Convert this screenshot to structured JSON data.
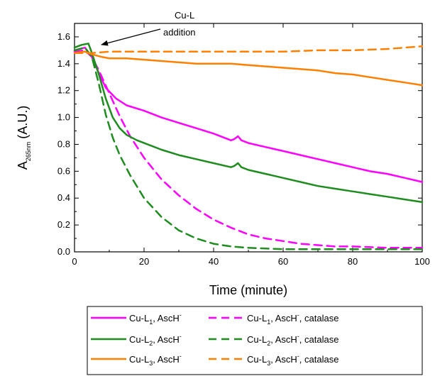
{
  "chart_data": {
    "type": "line",
    "xlabel": "Time (minute)",
    "ylabel": "A",
    "ylabel_subscript": "265nm",
    "ylabel_unit": "(A.U.)",
    "xlim": [
      0,
      100
    ],
    "ylim": [
      0,
      1.7
    ],
    "xticks": [
      "0",
      "20",
      "40",
      "60",
      "80",
      "100"
    ],
    "xtick_values": [
      0,
      20,
      40,
      60,
      80,
      100
    ],
    "yticks": [
      "0.0",
      "0.2",
      "0.4",
      "0.6",
      "0.8",
      "1.0",
      "1.2",
      "1.4",
      "1.6"
    ],
    "ytick_values": [
      0,
      0.2,
      0.4,
      0.6,
      0.8,
      1.0,
      1.2,
      1.4,
      1.6
    ],
    "grid": false,
    "legend_placement": "bottom",
    "annotation": {
      "line1": "Cu-L",
      "line2": "addition",
      "points_to_x": 4
    },
    "series": [
      {
        "name": "Cu-L1, AscH-",
        "legend": {
          "a": "Cu-L",
          "sub": "1",
          "b": ", AscH",
          "sup": "-",
          "c": ""
        },
        "color": "#ff00ff",
        "dash": "solid",
        "x": [
          0,
          3,
          5,
          7,
          9,
          12,
          15,
          20,
          25,
          30,
          35,
          40,
          45,
          46,
          47,
          48,
          50,
          55,
          60,
          65,
          70,
          75,
          80,
          85,
          90,
          95,
          100
        ],
        "y": [
          1.5,
          1.52,
          1.45,
          1.33,
          1.22,
          1.14,
          1.09,
          1.05,
          1.0,
          0.96,
          0.92,
          0.88,
          0.83,
          0.84,
          0.86,
          0.83,
          0.81,
          0.78,
          0.75,
          0.72,
          0.69,
          0.66,
          0.63,
          0.6,
          0.58,
          0.55,
          0.52
        ]
      },
      {
        "name": "Cu-L1, AscH-, catalase",
        "legend": {
          "a": "Cu-L",
          "sub": "1",
          "b": ", AscH",
          "sup": "-",
          "c": ", catalase"
        },
        "color": "#ff00ff",
        "dash": "dashed",
        "x": [
          0,
          3,
          5,
          7,
          10,
          13,
          16,
          20,
          25,
          30,
          35,
          40,
          45,
          50,
          55,
          60,
          65,
          70,
          75,
          80,
          85,
          90,
          95,
          100
        ],
        "y": [
          1.49,
          1.5,
          1.45,
          1.35,
          1.18,
          1.01,
          0.86,
          0.7,
          0.54,
          0.42,
          0.32,
          0.24,
          0.18,
          0.13,
          0.1,
          0.08,
          0.06,
          0.05,
          0.04,
          0.04,
          0.035,
          0.03,
          0.03,
          0.03
        ]
      },
      {
        "name": "Cu-L2, AscH-",
        "legend": {
          "a": "Cu-L",
          "sub": "2",
          "b": ", AscH",
          "sup": "-",
          "c": ""
        },
        "color": "#1e8c1e",
        "dash": "solid",
        "x": [
          0,
          2,
          4,
          5,
          7,
          9,
          11,
          13,
          15,
          18,
          20,
          25,
          30,
          35,
          40,
          45,
          46,
          47,
          48,
          50,
          55,
          60,
          65,
          70,
          75,
          80,
          85,
          90,
          95,
          100
        ],
        "y": [
          1.52,
          1.54,
          1.55,
          1.48,
          1.32,
          1.14,
          1.0,
          0.92,
          0.87,
          0.83,
          0.81,
          0.76,
          0.72,
          0.69,
          0.66,
          0.63,
          0.64,
          0.66,
          0.63,
          0.61,
          0.58,
          0.55,
          0.52,
          0.49,
          0.47,
          0.45,
          0.43,
          0.41,
          0.39,
          0.37
        ]
      },
      {
        "name": "Cu-L2, AscH-, catalase",
        "legend": {
          "a": "Cu-L",
          "sub": "2",
          "b": ", AscH",
          "sup": "-",
          "c": ", catalase"
        },
        "color": "#1e8c1e",
        "dash": "dashed",
        "x": [
          0,
          3,
          5,
          7,
          9,
          11,
          13,
          16,
          20,
          25,
          30,
          35,
          40,
          45,
          50,
          55,
          60,
          65,
          70,
          75,
          80,
          85,
          90,
          95,
          100
        ],
        "y": [
          1.5,
          1.52,
          1.45,
          1.25,
          1.02,
          0.85,
          0.72,
          0.57,
          0.4,
          0.26,
          0.16,
          0.1,
          0.06,
          0.04,
          0.03,
          0.025,
          0.02,
          0.02,
          0.02,
          0.02,
          0.02,
          0.02,
          0.02,
          0.02,
          0.02
        ]
      },
      {
        "name": "Cu-L3, AscH-",
        "legend": {
          "a": "Cu-L",
          "sub": "3",
          "b": ", AscH",
          "sup": "-",
          "c": ""
        },
        "color": "#ff8000",
        "dash": "solid",
        "x": [
          0,
          3,
          5,
          8,
          10,
          15,
          20,
          25,
          30,
          35,
          40,
          45,
          50,
          55,
          60,
          65,
          70,
          75,
          80,
          85,
          90,
          95,
          100
        ],
        "y": [
          1.48,
          1.49,
          1.47,
          1.45,
          1.44,
          1.44,
          1.43,
          1.42,
          1.41,
          1.4,
          1.4,
          1.4,
          1.39,
          1.38,
          1.37,
          1.36,
          1.35,
          1.33,
          1.32,
          1.3,
          1.28,
          1.26,
          1.24
        ]
      },
      {
        "name": "Cu-L3, AscH-, catalase",
        "legend": {
          "a": "Cu-L",
          "sub": "3",
          "b": ", AscH",
          "sup": "-",
          "c": ", catalase"
        },
        "color": "#ff8000",
        "dash": "dashed",
        "x": [
          0,
          5,
          10,
          20,
          30,
          40,
          50,
          60,
          70,
          80,
          90,
          100
        ],
        "y": [
          1.48,
          1.48,
          1.49,
          1.49,
          1.49,
          1.49,
          1.49,
          1.49,
          1.5,
          1.5,
          1.51,
          1.53
        ]
      }
    ]
  }
}
